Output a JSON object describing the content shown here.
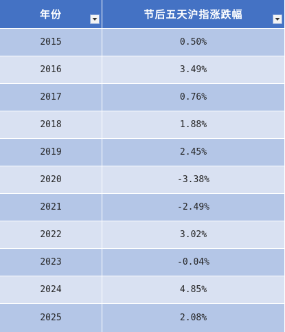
{
  "table": {
    "headers": [
      "年份",
      "节后五天沪指涨跌幅"
    ],
    "filter_icon": "dropdown-arrow-icon",
    "colors": {
      "header_bg": "#4472c4",
      "band_dark": "#b4c6e7",
      "band_light": "#d9e1f2"
    },
    "rows": [
      {
        "year": "2015",
        "change": "0.50%"
      },
      {
        "year": "2016",
        "change": "3.49%"
      },
      {
        "year": "2017",
        "change": "0.76%"
      },
      {
        "year": "2018",
        "change": "1.88%"
      },
      {
        "year": "2019",
        "change": "2.45%"
      },
      {
        "year": "2020",
        "change": "-3.38%"
      },
      {
        "year": "2021",
        "change": "-2.49%"
      },
      {
        "year": "2022",
        "change": "3.02%"
      },
      {
        "year": "2023",
        "change": "-0.04%"
      },
      {
        "year": "2024",
        "change": "4.85%"
      },
      {
        "year": "2025",
        "change": "2.08%"
      }
    ]
  }
}
